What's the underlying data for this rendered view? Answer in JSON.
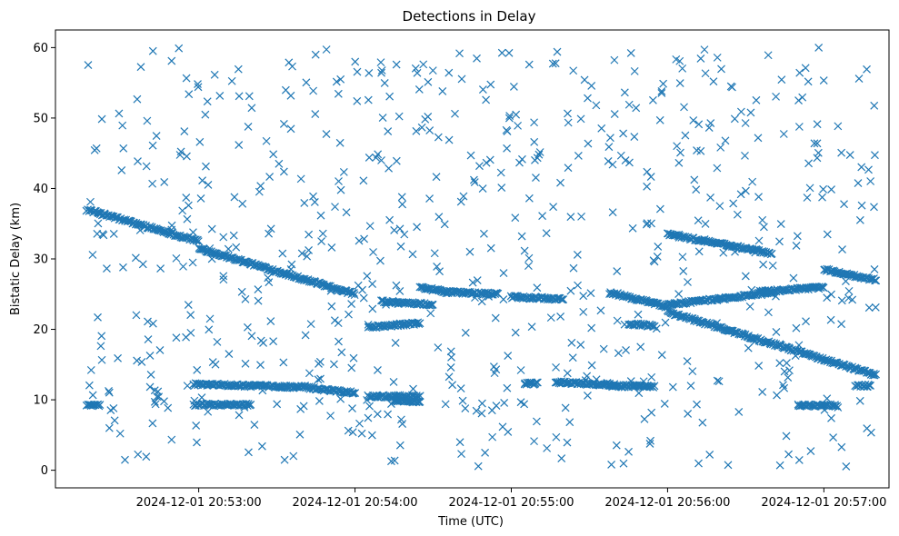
{
  "chart_data": {
    "type": "scatter",
    "title": "Detections in Delay",
    "xlabel": "Time (UTC)",
    "ylabel": "Bistatic Delay (km)",
    "marker": "x",
    "color": "#1f77b4",
    "xlim": [
      "2024-12-01 20:52:05",
      "2024-12-01 20:57:25"
    ],
    "ylim": [
      -2.5,
      62.5
    ],
    "x_ticks": [
      "2024-12-01 20:53:00",
      "2024-12-01 20:54:00",
      "2024-12-01 20:55:00",
      "2024-12-01 20:56:00",
      "2024-12-01 20:57:00"
    ],
    "y_ticks": [
      0,
      10,
      20,
      30,
      40,
      50,
      60
    ],
    "grid": false,
    "legend": "none",
    "tracks": [
      {
        "start": [
          "2024-12-01 20:52:17",
          37.0
        ],
        "end": [
          "2024-12-01 20:53:00",
          32.5
        ]
      },
      {
        "start": [
          "2024-12-01 20:53:00",
          31.5
        ],
        "end": [
          "2024-12-01 20:54:00",
          25.0
        ]
      },
      {
        "start": [
          "2024-12-01 20:52:17",
          9.2
        ],
        "end": [
          "2024-12-01 20:52:22",
          9.2
        ]
      },
      {
        "start": [
          "2024-12-01 20:52:58",
          9.3
        ],
        "end": [
          "2024-12-01 20:53:20",
          9.3
        ]
      },
      {
        "start": [
          "2024-12-01 20:52:58",
          12.2
        ],
        "end": [
          "2024-12-01 20:53:40",
          11.8
        ]
      },
      {
        "start": [
          "2024-12-01 20:53:40",
          11.8
        ],
        "end": [
          "2024-12-01 20:54:00",
          11.0
        ]
      },
      {
        "start": [
          "2024-12-01 20:54:05",
          10.5
        ],
        "end": [
          "2024-12-01 20:54:25",
          10.5
        ]
      },
      {
        "start": [
          "2024-12-01 20:54:15",
          10.0
        ],
        "end": [
          "2024-12-01 20:54:25",
          9.7
        ]
      },
      {
        "start": [
          "2024-12-01 20:54:05",
          20.3
        ],
        "end": [
          "2024-12-01 20:54:25",
          20.9
        ]
      },
      {
        "start": [
          "2024-12-01 20:54:10",
          24.0
        ],
        "end": [
          "2024-12-01 20:54:30",
          23.5
        ]
      },
      {
        "start": [
          "2024-12-01 20:54:25",
          26.0
        ],
        "end": [
          "2024-12-01 20:54:35",
          25.3
        ]
      },
      {
        "start": [
          "2024-12-01 20:54:35",
          25.3
        ],
        "end": [
          "2024-12-01 20:54:55",
          25.0
        ]
      },
      {
        "start": [
          "2024-12-01 20:55:00",
          24.6
        ],
        "end": [
          "2024-12-01 20:55:20",
          24.3
        ]
      },
      {
        "start": [
          "2024-12-01 20:55:05",
          12.3
        ],
        "end": [
          "2024-12-01 20:55:10",
          12.3
        ]
      },
      {
        "start": [
          "2024-12-01 20:55:17",
          12.5
        ],
        "end": [
          "2024-12-01 20:55:40",
          12.1
        ]
      },
      {
        "start": [
          "2024-12-01 20:55:38",
          12.0
        ],
        "end": [
          "2024-12-01 20:55:55",
          11.9
        ]
      },
      {
        "start": [
          "2024-12-01 20:55:38",
          25.2
        ],
        "end": [
          "2024-12-01 20:56:00",
          23.2
        ]
      },
      {
        "start": [
          "2024-12-01 20:55:45",
          20.8
        ],
        "end": [
          "2024-12-01 20:55:55",
          20.5
        ]
      },
      {
        "start": [
          "2024-12-01 20:56:00",
          23.5
        ],
        "end": [
          "2024-12-01 20:56:40",
          25.2
        ]
      },
      {
        "start": [
          "2024-12-01 20:56:35",
          25.3
        ],
        "end": [
          "2024-12-01 20:57:00",
          26.0
        ]
      },
      {
        "start": [
          "2024-12-01 20:56:00",
          33.5
        ],
        "end": [
          "2024-12-01 20:56:40",
          30.8
        ]
      },
      {
        "start": [
          "2024-12-01 20:56:00",
          22.5
        ],
        "end": [
          "2024-12-01 20:57:20",
          13.5
        ]
      },
      {
        "start": [
          "2024-12-01 20:56:50",
          9.2
        ],
        "end": [
          "2024-12-01 20:57:05",
          9.2
        ]
      },
      {
        "start": [
          "2024-12-01 20:57:00",
          28.5
        ],
        "end": [
          "2024-12-01 20:57:20",
          27.0
        ]
      },
      {
        "start": [
          "2024-12-01 20:57:12",
          12.0
        ],
        "end": [
          "2024-12-01 20:57:18",
          12.0
        ]
      }
    ],
    "clutter": {
      "x_range": [
        "2024-12-01 20:52:17",
        "2024-12-01 20:57:20"
      ],
      "y_range": [
        0.5,
        60
      ],
      "count": 700
    }
  }
}
